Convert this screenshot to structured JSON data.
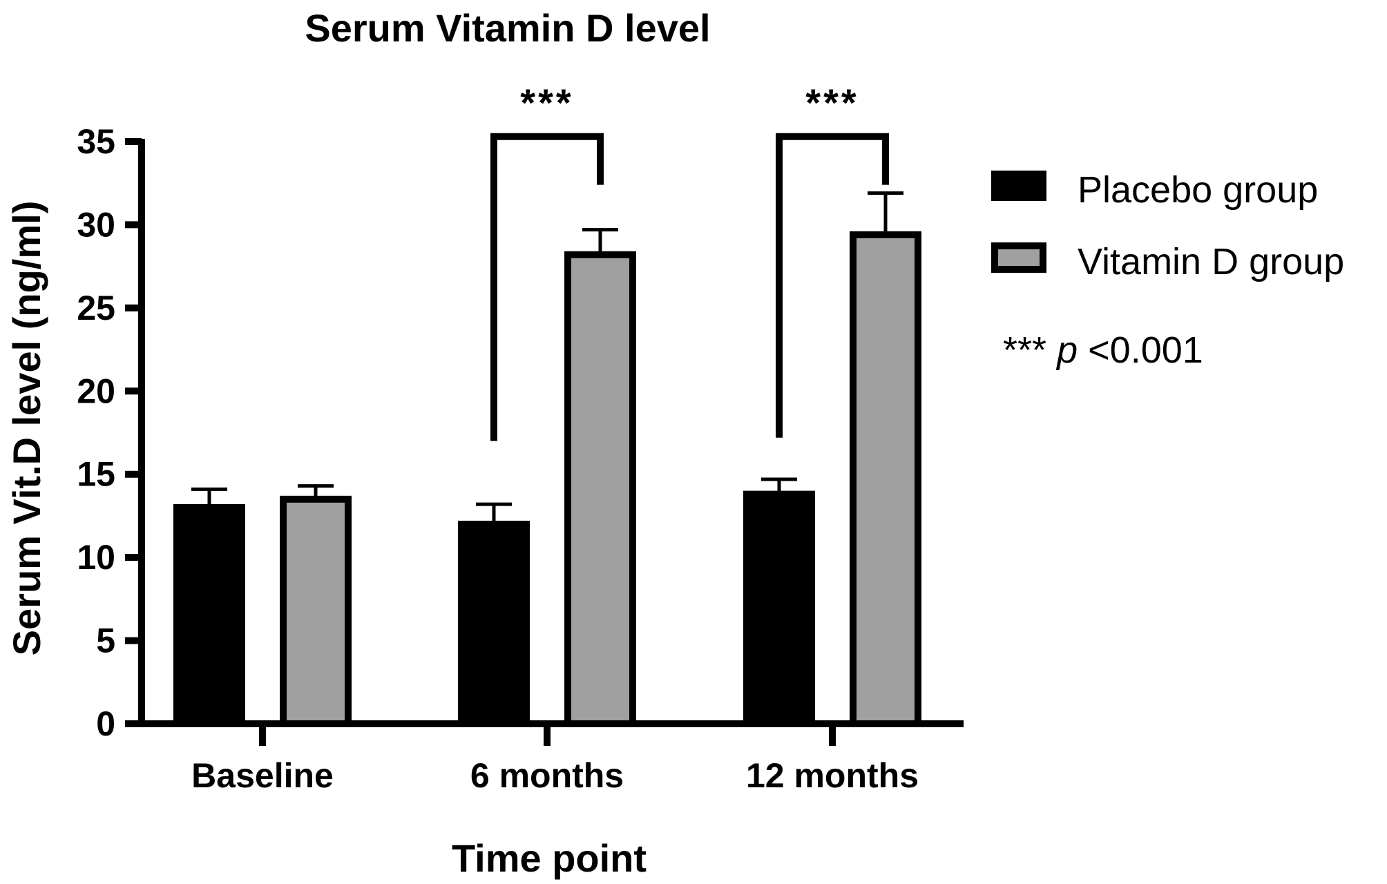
{
  "chart_data": {
    "type": "bar",
    "title": "Serum Vitamin D level",
    "xlabel": "Time point",
    "ylabel": "Serum Vit.D level (ng/ml)",
    "categories": [
      "Baseline",
      "6 months",
      "12 months"
    ],
    "ylim": [
      0,
      35
    ],
    "yticks": [
      0,
      5,
      10,
      15,
      20,
      25,
      30,
      35
    ],
    "ytick_labels": [
      "0",
      "5",
      "10",
      "15",
      "20",
      "25",
      "30",
      "35"
    ],
    "series": [
      {
        "name": "Placebo group",
        "values": [
          13.0,
          12.0,
          13.8
        ],
        "errors": [
          1.1,
          1.2,
          0.9
        ],
        "color": "#000000"
      },
      {
        "name": "Vitamin D group",
        "values": [
          13.5,
          28.2,
          29.4
        ],
        "errors": [
          0.8,
          1.5,
          2.5
        ],
        "color": "#a0a0a0"
      }
    ],
    "significance": [
      {
        "category_index": 1,
        "label": "***"
      },
      {
        "category_index": 2,
        "label": "***"
      }
    ],
    "annotation": {
      "stars": "***",
      "p_symbol": "p",
      "p_value": "<0.001"
    },
    "legend_position": "right",
    "grid": false
  }
}
